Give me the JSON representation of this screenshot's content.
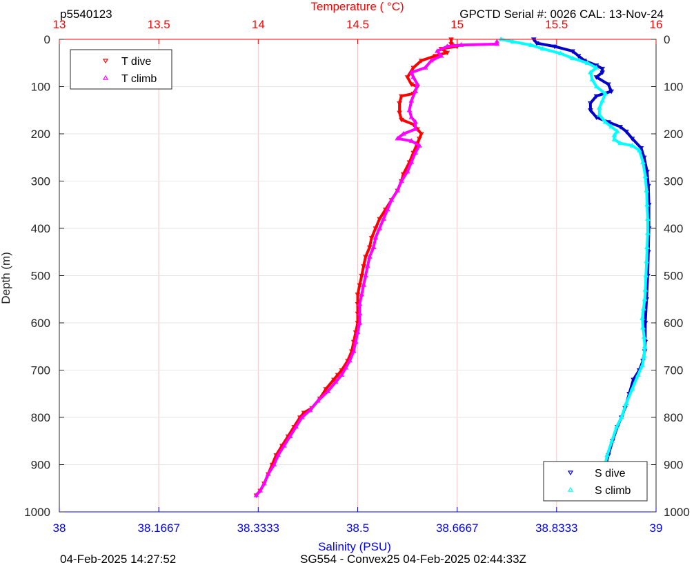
{
  "header": {
    "left_title": "p5540123",
    "right_title": "GPCTD Serial #: 0026 CAL: 13-Nov-24"
  },
  "footer": {
    "left": "04-Feb-2025 14:27:52",
    "center": "SG554 - Convex25 04-Feb-2025 02:44:33Z"
  },
  "colors": {
    "temperature_axis": "#ff0000",
    "salinity_axis": "#0000ff",
    "depth_axis": "#262626",
    "grid_temperature": "#f2c6c6",
    "grid_depth": "#e6e6e6",
    "t_dive": "#ff0000",
    "t_climb": "#ff00ff",
    "s_dive": "#0000cd",
    "s_climb": "#00ffff"
  },
  "chart_data": {
    "type": "scatter",
    "title": "",
    "top_axis": {
      "label": "Temperature (    °C)",
      "range": [
        13,
        16
      ],
      "ticks": [
        13,
        13.5,
        14,
        14.5,
        15,
        15.5,
        16
      ],
      "tick_labels": [
        "13",
        "13.5",
        "14",
        "14.5",
        "15",
        "15.5",
        "16"
      ]
    },
    "bottom_axis": {
      "label": "Salinity (PSU)",
      "range": [
        38,
        39
      ],
      "ticks": [
        38,
        38.1667,
        38.3333,
        38.5,
        38.6667,
        38.8333,
        39
      ],
      "tick_labels": [
        "38",
        "38.1667",
        "38.3333",
        "38.5",
        "38.6667",
        "38.8333",
        "39"
      ]
    },
    "y_axis": {
      "label": "Depth (m)",
      "range": [
        0,
        1000
      ],
      "reversed": true,
      "ticks": [
        0,
        100,
        200,
        300,
        400,
        500,
        600,
        700,
        800,
        900,
        1000
      ],
      "tick_labels": [
        "0",
        "100",
        "200",
        "300",
        "400",
        "500",
        "600",
        "700",
        "800",
        "900",
        "1000"
      ]
    },
    "grid": true,
    "legends": [
      {
        "position": "top-left",
        "entries": [
          "T dive",
          "T climb"
        ]
      },
      {
        "position": "bottom-right",
        "entries": [
          "S dive",
          "S climb"
        ]
      }
    ],
    "series": [
      {
        "name": "T dive",
        "axis": "temperature",
        "marker": "triangle-down",
        "points": [
          [
            14.97,
            0
          ],
          [
            14.97,
            10
          ],
          [
            15.0,
            15
          ],
          [
            14.92,
            20
          ],
          [
            14.95,
            28
          ],
          [
            14.89,
            35
          ],
          [
            14.82,
            45
          ],
          [
            14.78,
            60
          ],
          [
            14.75,
            80
          ],
          [
            14.77,
            95
          ],
          [
            14.8,
            100
          ],
          [
            14.78,
            115
          ],
          [
            14.72,
            120
          ],
          [
            14.71,
            135
          ],
          [
            14.71,
            155
          ],
          [
            14.72,
            170
          ],
          [
            14.78,
            180
          ],
          [
            14.8,
            190
          ],
          [
            14.82,
            200
          ],
          [
            14.81,
            210
          ],
          [
            14.8,
            220
          ],
          [
            14.78,
            240
          ],
          [
            14.76,
            260
          ],
          [
            14.73,
            285
          ],
          [
            14.72,
            300
          ],
          [
            14.7,
            320
          ],
          [
            14.67,
            340
          ],
          [
            14.64,
            360
          ],
          [
            14.61,
            380
          ],
          [
            14.59,
            400
          ],
          [
            14.57,
            420
          ],
          [
            14.56,
            440
          ],
          [
            14.54,
            460
          ],
          [
            14.53,
            480
          ],
          [
            14.52,
            500
          ],
          [
            14.51,
            520
          ],
          [
            14.5,
            540
          ],
          [
            14.5,
            560
          ],
          [
            14.5,
            580
          ],
          [
            14.5,
            600
          ],
          [
            14.49,
            620
          ],
          [
            14.48,
            640
          ],
          [
            14.47,
            660
          ],
          [
            14.45,
            680
          ],
          [
            14.42,
            700
          ],
          [
            14.4,
            710
          ],
          [
            14.38,
            720
          ],
          [
            14.34,
            740
          ],
          [
            14.31,
            760
          ],
          [
            14.27,
            780
          ],
          [
            14.23,
            790
          ],
          [
            14.21,
            800
          ],
          [
            14.18,
            820
          ],
          [
            14.15,
            840
          ],
          [
            14.12,
            860
          ],
          [
            14.09,
            880
          ],
          [
            14.07,
            900
          ],
          [
            14.05,
            920
          ],
          [
            14.03,
            940
          ],
          [
            14.01,
            955
          ],
          [
            13.99,
            965
          ]
        ]
      },
      {
        "name": "T climb",
        "axis": "temperature",
        "marker": "triangle-up",
        "points": [
          [
            13.99,
            965
          ],
          [
            14.01,
            955
          ],
          [
            14.03,
            940
          ],
          [
            14.05,
            920
          ],
          [
            14.08,
            900
          ],
          [
            14.1,
            880
          ],
          [
            14.13,
            860
          ],
          [
            14.16,
            840
          ],
          [
            14.19,
            820
          ],
          [
            14.22,
            800
          ],
          [
            14.26,
            785
          ],
          [
            14.3,
            765
          ],
          [
            14.35,
            745
          ],
          [
            14.39,
            725
          ],
          [
            14.42,
            710
          ],
          [
            14.44,
            695
          ],
          [
            14.46,
            680
          ],
          [
            14.48,
            660
          ],
          [
            14.49,
            640
          ],
          [
            14.5,
            620
          ],
          [
            14.51,
            600
          ],
          [
            14.51,
            580
          ],
          [
            14.51,
            560
          ],
          [
            14.52,
            540
          ],
          [
            14.53,
            520
          ],
          [
            14.54,
            500
          ],
          [
            14.55,
            480
          ],
          [
            14.56,
            460
          ],
          [
            14.58,
            440
          ],
          [
            14.59,
            420
          ],
          [
            14.61,
            400
          ],
          [
            14.63,
            380
          ],
          [
            14.65,
            360
          ],
          [
            14.67,
            340
          ],
          [
            14.7,
            320
          ],
          [
            14.72,
            300
          ],
          [
            14.75,
            280
          ],
          [
            14.77,
            260
          ],
          [
            14.79,
            240
          ],
          [
            14.81,
            225
          ],
          [
            14.77,
            215
          ],
          [
            14.7,
            210
          ],
          [
            14.73,
            200
          ],
          [
            14.79,
            190
          ],
          [
            14.79,
            175
          ],
          [
            14.77,
            165
          ],
          [
            14.76,
            150
          ],
          [
            14.77,
            130
          ],
          [
            14.79,
            110
          ],
          [
            14.8,
            95
          ],
          [
            14.78,
            80
          ],
          [
            14.77,
            70
          ],
          [
            14.84,
            60
          ],
          [
            14.87,
            45
          ],
          [
            14.92,
            35
          ],
          [
            14.9,
            25
          ],
          [
            14.95,
            15
          ],
          [
            15.02,
            12
          ],
          [
            15.2,
            10
          ],
          [
            15.2,
            5
          ]
        ]
      },
      {
        "name": "S dive",
        "axis": "salinity",
        "marker": "triangle-down",
        "points": [
          [
            38.795,
            0
          ],
          [
            38.8,
            8
          ],
          [
            38.83,
            15
          ],
          [
            38.86,
            25
          ],
          [
            38.87,
            35
          ],
          [
            38.88,
            45
          ],
          [
            38.9,
            55
          ],
          [
            38.91,
            62
          ],
          [
            38.91,
            70
          ],
          [
            38.9,
            80
          ],
          [
            38.92,
            95
          ],
          [
            38.925,
            110
          ],
          [
            38.9,
            120
          ],
          [
            38.89,
            135
          ],
          [
            38.89,
            150
          ],
          [
            38.9,
            165
          ],
          [
            38.92,
            175
          ],
          [
            38.94,
            185
          ],
          [
            38.95,
            195
          ],
          [
            38.96,
            210
          ],
          [
            38.975,
            230
          ],
          [
            38.98,
            250
          ],
          [
            38.985,
            280
          ],
          [
            38.987,
            310
          ],
          [
            38.988,
            350
          ],
          [
            38.988,
            400
          ],
          [
            38.987,
            450
          ],
          [
            38.986,
            500
          ],
          [
            38.984,
            550
          ],
          [
            38.982,
            600
          ],
          [
            38.982,
            640
          ],
          [
            38.981,
            660
          ],
          [
            38.978,
            680
          ],
          [
            38.972,
            700
          ],
          [
            38.962,
            720
          ],
          [
            38.955,
            750
          ],
          [
            38.948,
            780
          ],
          [
            38.942,
            800
          ],
          [
            38.935,
            820
          ],
          [
            38.927,
            850
          ],
          [
            38.92,
            880
          ],
          [
            38.914,
            910
          ],
          [
            38.909,
            940
          ],
          [
            38.906,
            965
          ]
        ]
      },
      {
        "name": "S climb",
        "axis": "salinity",
        "marker": "triangle-up",
        "points": [
          [
            38.906,
            965
          ],
          [
            38.909,
            940
          ],
          [
            38.913,
            910
          ],
          [
            38.918,
            880
          ],
          [
            38.926,
            850
          ],
          [
            38.934,
            820
          ],
          [
            38.942,
            800
          ],
          [
            38.95,
            770
          ],
          [
            38.96,
            740
          ],
          [
            38.97,
            710
          ],
          [
            38.977,
            690
          ],
          [
            38.98,
            670
          ],
          [
            38.981,
            650
          ],
          [
            38.98,
            630
          ],
          [
            38.978,
            610
          ],
          [
            38.977,
            590
          ],
          [
            38.979,
            570
          ],
          [
            38.981,
            550
          ],
          [
            38.982,
            530
          ],
          [
            38.983,
            500
          ],
          [
            38.984,
            470
          ],
          [
            38.985,
            440
          ],
          [
            38.986,
            410
          ],
          [
            38.986,
            380
          ],
          [
            38.985,
            350
          ],
          [
            38.984,
            320
          ],
          [
            38.982,
            290
          ],
          [
            38.978,
            260
          ],
          [
            38.972,
            235
          ],
          [
            38.96,
            225
          ],
          [
            38.94,
            220
          ],
          [
            38.93,
            212
          ],
          [
            38.93,
            203
          ],
          [
            38.935,
            195
          ],
          [
            38.925,
            185
          ],
          [
            38.915,
            175
          ],
          [
            38.905,
            160
          ],
          [
            38.905,
            145
          ],
          [
            38.91,
            130
          ],
          [
            38.915,
            115
          ],
          [
            38.9,
            100
          ],
          [
            38.893,
            85
          ],
          [
            38.89,
            70
          ],
          [
            38.9,
            60
          ],
          [
            38.885,
            50
          ],
          [
            38.86,
            40
          ],
          [
            38.84,
            30
          ],
          [
            38.81,
            20
          ],
          [
            38.79,
            12
          ],
          [
            38.76,
            5
          ],
          [
            38.74,
            0
          ]
        ]
      }
    ]
  }
}
